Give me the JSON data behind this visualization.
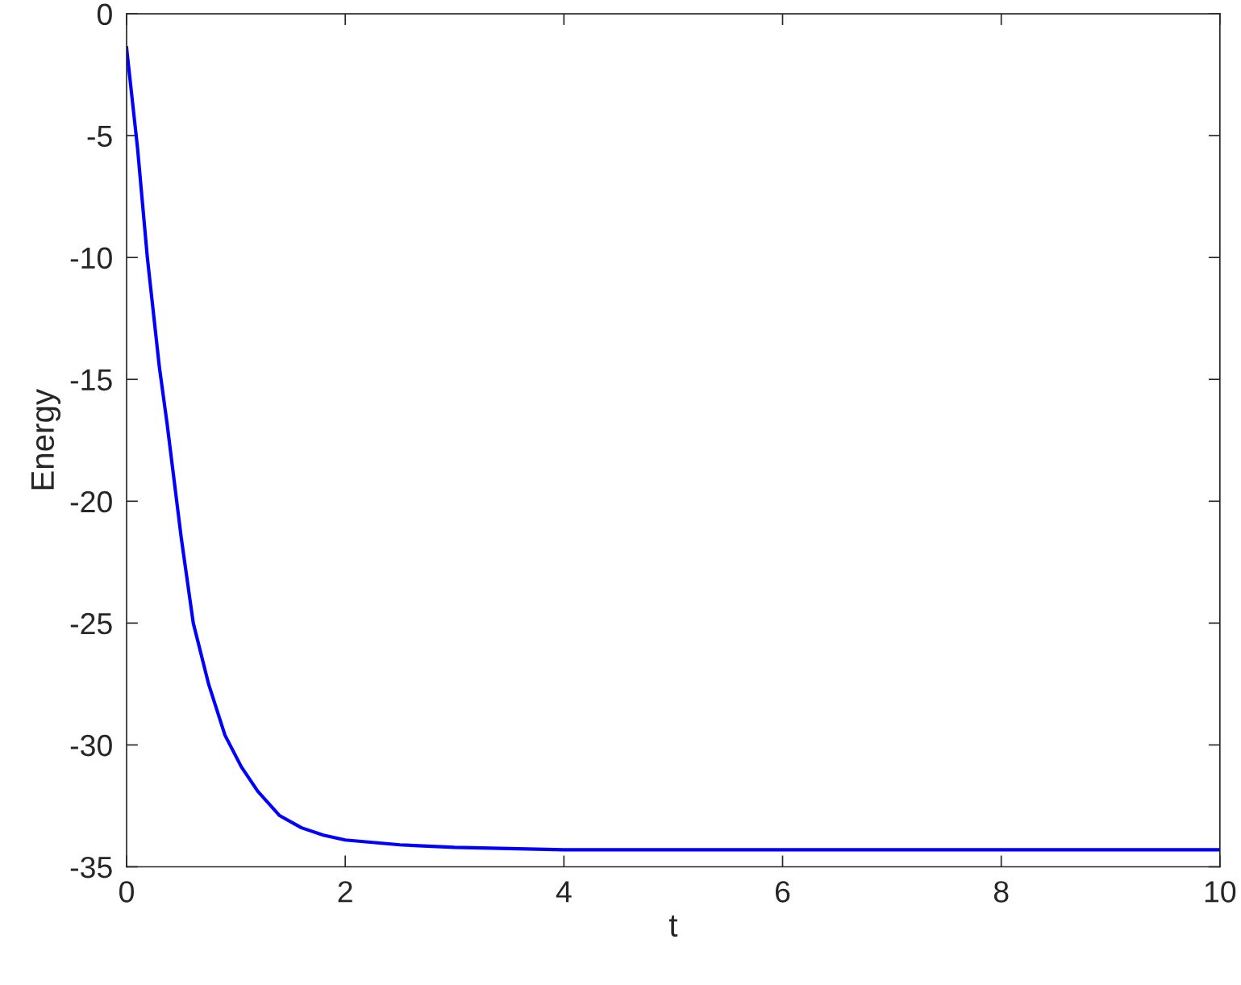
{
  "chart_data": {
    "type": "line",
    "xlabel": "t",
    "ylabel": "Energy",
    "x": [
      0,
      0.1,
      0.19,
      0.3,
      0.37,
      0.5,
      0.61,
      0.75,
      0.9,
      1.05,
      1.2,
      1.4,
      1.6,
      1.8,
      2,
      2.5,
      3,
      3.5,
      4,
      6,
      8,
      10
    ],
    "series": [
      {
        "color": "#0000ff",
        "values": [
          -1.4,
          -5.5,
          -10,
          -14.5,
          -16.8,
          -21.5,
          -25,
          -27.5,
          -29.6,
          -30.9,
          -31.9,
          -32.9,
          -33.4,
          -33.7,
          -33.9,
          -34.1,
          -34.2,
          -34.25,
          -34.3,
          -34.3,
          -34.3,
          -34.3
        ]
      }
    ],
    "xlim": [
      0,
      10
    ],
    "ylim": [
      -35,
      0
    ],
    "xticks": [
      0,
      2,
      4,
      6,
      8,
      10
    ],
    "yticks": [
      -35,
      -30,
      -25,
      -20,
      -15,
      -10,
      -5,
      0
    ],
    "grid": false,
    "legend": false,
    "marker": "none",
    "line_style": "solid"
  }
}
